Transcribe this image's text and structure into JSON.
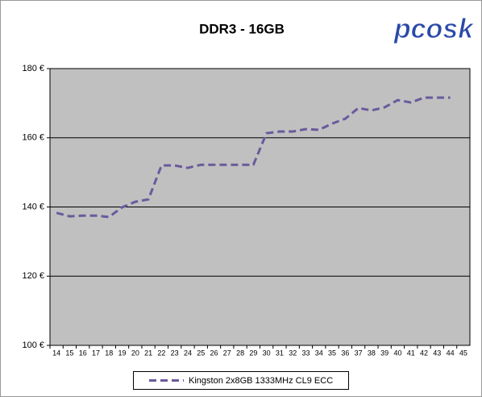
{
  "chart_data": {
    "type": "line",
    "title": "DDR3 - 16GB",
    "logo": "pcosk",
    "categories": [
      "14",
      "15",
      "16",
      "17",
      "18",
      "19",
      "20",
      "21",
      "22",
      "23",
      "24",
      "25",
      "26",
      "27",
      "28",
      "29",
      "30",
      "31",
      "32",
      "33",
      "34",
      "35",
      "36",
      "37",
      "38",
      "39",
      "40",
      "41",
      "42",
      "43",
      "44",
      "45"
    ],
    "series": [
      {
        "name": "Kingston 2x8GB 1333MHz CL9 ECC",
        "color": "#6a5a9c",
        "values": [
          138.3,
          137.3,
          137.5,
          137.5,
          137.1,
          139.9,
          141.5,
          142.2,
          152.0,
          152.0,
          151.3,
          152.2,
          152.2,
          152.2,
          152.2,
          152.2,
          161.3,
          161.8,
          161.8,
          162.5,
          162.3,
          164.1,
          165.5,
          168.6,
          167.9,
          168.8,
          170.9,
          170.2,
          171.6,
          171.6,
          171.6,
          null
        ]
      }
    ],
    "ylim": [
      100,
      180
    ],
    "yticks": [
      {
        "value": 100,
        "label": "100 €"
      },
      {
        "value": 120,
        "label": "120 €"
      },
      {
        "value": 140,
        "label": "140 €"
      },
      {
        "value": 160,
        "label": "160 €"
      },
      {
        "value": 180,
        "label": "180 €"
      }
    ],
    "grid": true,
    "plot_background": "#c0c0c0",
    "legend": "bottom"
  }
}
